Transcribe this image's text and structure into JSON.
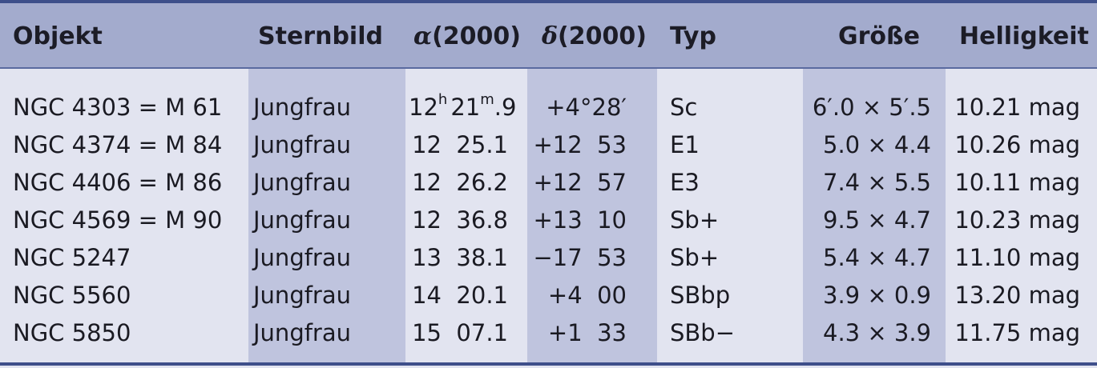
{
  "headers": {
    "objekt": "Objekt",
    "sternbild": "Sternbild",
    "alpha_symbol": "α",
    "alpha_epoch": "(2000)",
    "delta_symbol": "δ",
    "delta_epoch": "(2000)",
    "typ": "Typ",
    "groesse": "Größe",
    "helligkeit": "Helligkeit"
  },
  "rows": [
    {
      "objekt": "NGC 4303 = M 61",
      "sternbild": "Jungfrau",
      "ra_h": "12",
      "ra_h_unit": "h",
      "ra_m": "21",
      "ra_m_unit": "m",
      "ra_m_frac": ".9",
      "dec": "+4°28′",
      "typ": "Sc",
      "groesse": "6′.0 × 5′.5",
      "helligkeit": "10.21 mag"
    },
    {
      "objekt": "NGC 4374 = M 84",
      "sternbild": "Jungfrau",
      "ra": "12  25.1",
      "dec": "+12  53",
      "typ": "E1",
      "groesse": "5.0 × 4.4",
      "helligkeit": "10.26 mag"
    },
    {
      "objekt": "NGC 4406 = M 86",
      "sternbild": "Jungfrau",
      "ra": "12  26.2",
      "dec": "+12  57",
      "typ": "E3",
      "groesse": "7.4 × 5.5",
      "helligkeit": "10.11 mag"
    },
    {
      "objekt": "NGC 4569 = M 90",
      "sternbild": "Jungfrau",
      "ra": "12  36.8",
      "dec": "+13  10",
      "typ": "Sb+",
      "groesse": "9.5 × 4.7",
      "helligkeit": "10.23 mag"
    },
    {
      "objekt": "NGC 5247",
      "sternbild": "Jungfrau",
      "ra": "13  38.1",
      "dec": "−17  53",
      "typ": "Sb+",
      "groesse": "5.4 × 4.7",
      "helligkeit": "11.10 mag"
    },
    {
      "objekt": "NGC 5560",
      "sternbild": "Jungfrau",
      "ra": "14  20.1",
      "dec": "+4  00",
      "typ": "SBbp",
      "groesse": "3.9 × 0.9",
      "helligkeit": "13.20 mag"
    },
    {
      "objekt": "NGC 5850",
      "sternbild": "Jungfrau",
      "ra": "15  07.1",
      "dec": "+1  33",
      "typ": "SBb−",
      "groesse": "4.3 × 3.9",
      "helligkeit": "11.75 mag"
    }
  ],
  "colors": {
    "header_bg": "#a3abcd",
    "band_bg": "#bfc4de",
    "body_bg": "#e2e4f0",
    "rule": "#3e4f8a"
  }
}
